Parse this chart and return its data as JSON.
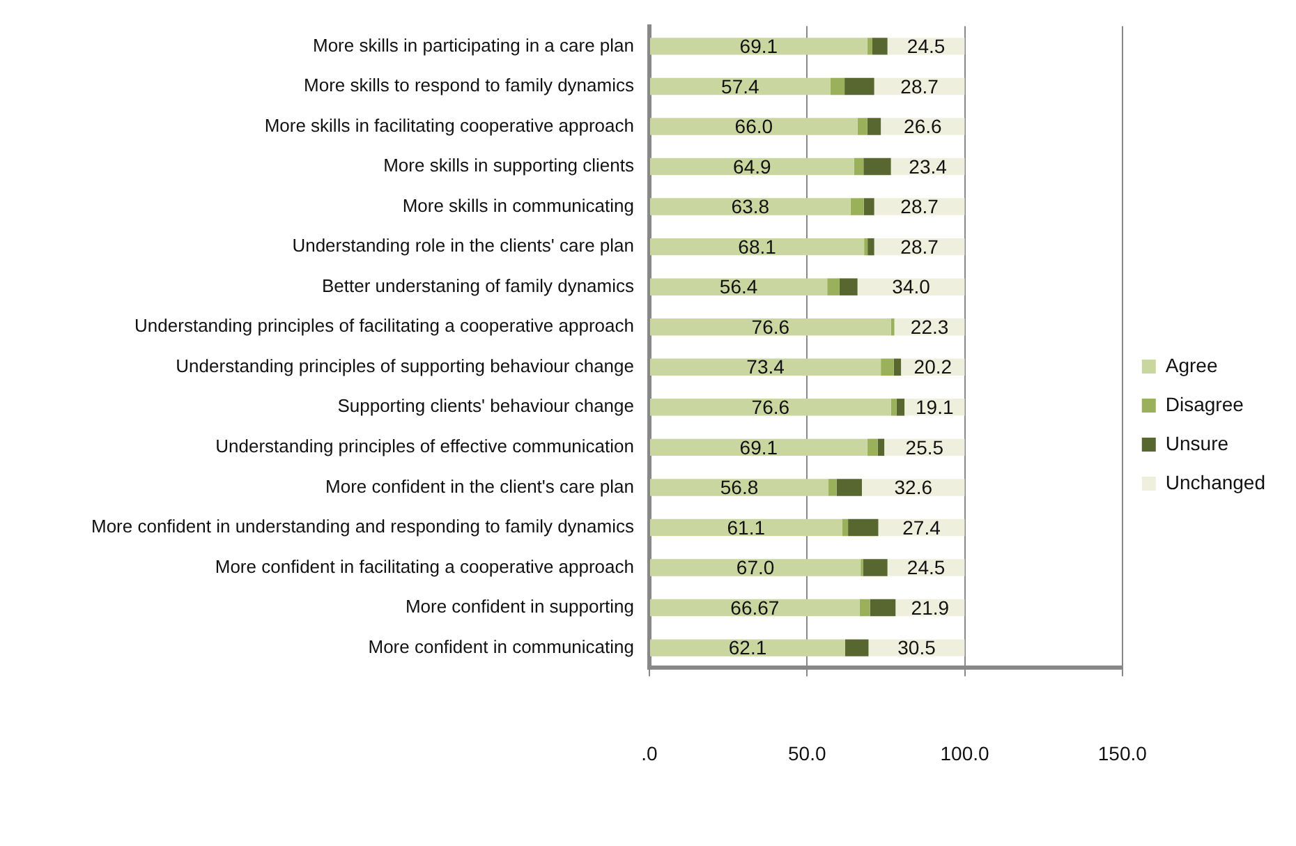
{
  "chart_data": {
    "type": "bar",
    "orientation": "horizontal",
    "stacked": true,
    "categories": [
      "More skills in participating in a care plan",
      "More skills to respond to family dynamics",
      "More skills in facilitating cooperative approach",
      "More skills in supporting clients",
      "More skills in communicating",
      "Understanding role in the clients' care plan",
      "Better understaning of family dynamics",
      "Understanding principles of facilitating a cooperative approach",
      "Understanding principles of supporting behaviour change",
      "Supporting clients' behaviour change",
      "Understanding principles of effective communication",
      "More confident in the client's care plan",
      "More confident in understanding and responding to family dynamics",
      "More confident in facilitating a cooperative approach",
      "More confident in supporting",
      "More confident in communicating"
    ],
    "series": [
      {
        "name": "Agree",
        "color": "#c9d6a0",
        "values": [
          69.1,
          57.4,
          66.0,
          64.9,
          63.8,
          68.1,
          56.4,
          76.6,
          73.4,
          76.6,
          69.1,
          56.8,
          61.1,
          67.0,
          66.67,
          62.1
        ],
        "value_labels": [
          "69.1",
          "57.4",
          "66.0",
          "64.9",
          "63.8",
          "68.1",
          "56.4",
          "76.6",
          "73.4",
          "76.6",
          "69.1",
          "56.8",
          "61.1",
          "67.0",
          "66.67",
          "62.1"
        ]
      },
      {
        "name": "Disagree",
        "color": "#9bb05b",
        "values": [
          1.6,
          4.5,
          3.1,
          3.0,
          4.2,
          1.1,
          3.9,
          1.1,
          4.1,
          1.8,
          3.3,
          2.6,
          1.9,
          0.8,
          3.3,
          0
        ]
      },
      {
        "name": "Unsure",
        "color": "#58662f",
        "values": [
          4.8,
          9.4,
          4.3,
          8.7,
          3.3,
          2.1,
          5.7,
          0,
          2.3,
          2.5,
          2.1,
          8.0,
          9.6,
          7.7,
          8.1,
          7.4
        ]
      },
      {
        "name": "Unchanged",
        "color": "#eef0dd",
        "values": [
          24.5,
          28.7,
          26.6,
          23.4,
          28.7,
          28.7,
          34.0,
          22.3,
          20.2,
          19.1,
          25.5,
          32.6,
          27.4,
          24.5,
          21.9,
          30.5
        ],
        "value_labels": [
          "24.5",
          "28.7",
          "26.6",
          "23.4",
          "28.7",
          "28.7",
          "34.0",
          "22.3",
          "20.2",
          "19.1",
          "25.5",
          "32.6",
          "27.4",
          "24.5",
          "21.9",
          "30.5"
        ]
      }
    ],
    "xlim": [
      0,
      150
    ],
    "xticks": [
      {
        "value": 0,
        "label": ".0"
      },
      {
        "value": 50,
        "label": "50.0"
      },
      {
        "value": 100,
        "label": "100.0"
      },
      {
        "value": 150,
        "label": "150.0"
      }
    ],
    "grid": "x",
    "legend": "right"
  }
}
